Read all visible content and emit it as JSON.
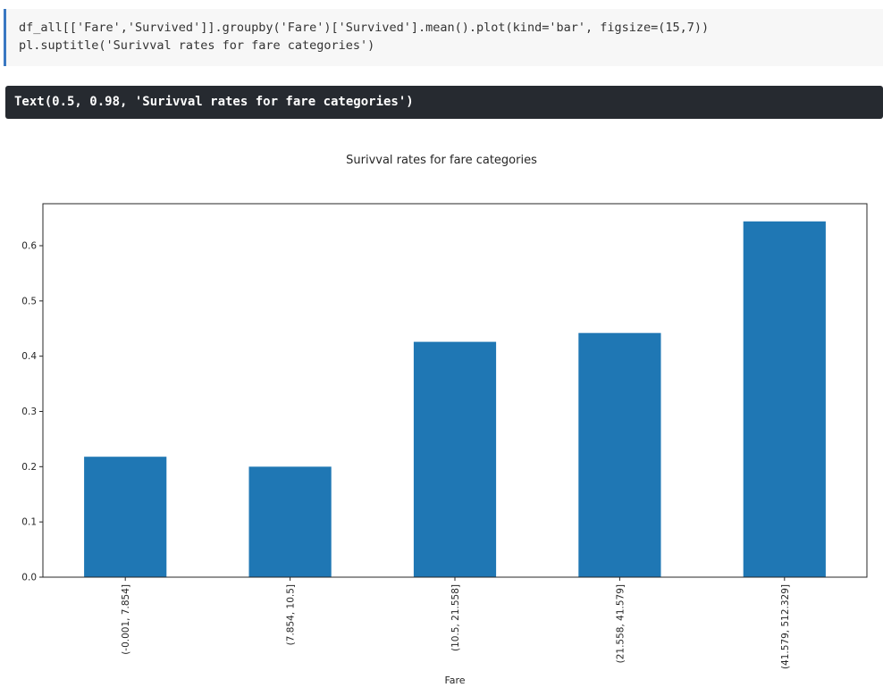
{
  "code": {
    "line1": "df_all[['Fare','Survived']].groupby('Fare')['Survived'].mean().plot(kind='bar', figsize=(15,7))",
    "line2": "pl.suptitle('Surivval rates for fare categories')"
  },
  "output": {
    "text": "Text(0.5, 0.98, 'Surivval rates for fare categories')"
  },
  "chart_data": {
    "type": "bar",
    "title": "Surivval rates for fare categories",
    "xlabel": "Fare",
    "ylabel": "",
    "categories": [
      "(-0.001, 7.854]",
      "(7.854, 10.5]",
      "(10.5, 21.558]",
      "(21.558, 41.579]",
      "(41.579, 512.329]"
    ],
    "values": [
      0.218,
      0.2,
      0.426,
      0.442,
      0.644
    ],
    "ylim": [
      0,
      0.676
    ],
    "yticks": [
      "0.0",
      "0.1",
      "0.2",
      "0.3",
      "0.4",
      "0.5",
      "0.6"
    ],
    "bar_color": "#1f77b4",
    "grid": false,
    "legend": "none"
  }
}
